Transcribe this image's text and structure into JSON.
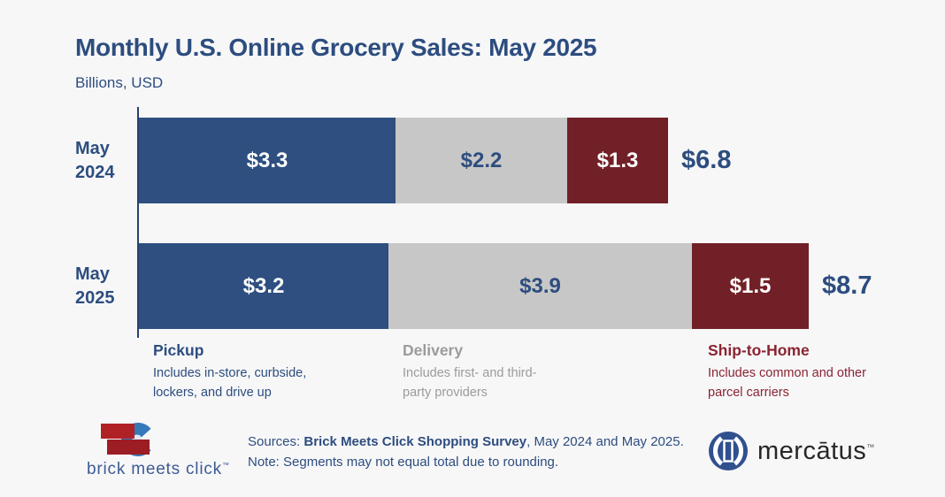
{
  "header": {
    "title": "Monthly U.S. Online Grocery Sales: May 2025",
    "subtitle": "Billions, USD"
  },
  "chart_data": {
    "type": "bar",
    "orientation": "horizontal",
    "stacked": true,
    "title": "Monthly U.S. Online Grocery Sales: May 2025",
    "unit_label": "Billions, USD",
    "categories": [
      "May 2024",
      "May 2025"
    ],
    "series": [
      {
        "name": "Pickup",
        "color": "#2e4f80",
        "label_color": "#ffffff",
        "values": [
          3.3,
          3.2
        ]
      },
      {
        "name": "Delivery",
        "color": "#c7c7c7",
        "label_color": "#2d4d7f",
        "values": [
          2.2,
          3.9
        ]
      },
      {
        "name": "Ship-to-Home",
        "color": "#722027",
        "label_color": "#ffffff",
        "values": [
          1.3,
          1.5
        ]
      }
    ],
    "segment_labels": [
      [
        "$3.3",
        "$2.2",
        "$1.3"
      ],
      [
        "$3.2",
        "$3.9",
        "$1.5"
      ]
    ],
    "totals": [
      6.8,
      8.7
    ],
    "total_labels": [
      "$6.8",
      "$8.7"
    ],
    "xlim": [
      0,
      8.7
    ],
    "axis_color": "#27436e",
    "value_text_color": "#2d4d7f",
    "legend_position": "below"
  },
  "legend": [
    {
      "title": "Pickup",
      "desc": "Includes in-store, curbside, lockers, and drive up",
      "color": "#2d4d7f"
    },
    {
      "title": "Delivery",
      "desc": "Includes first- and third-party providers",
      "color": "#9b9b9b"
    },
    {
      "title": "Ship-to-Home",
      "desc": "Includes common and other parcel carriers",
      "color": "#8a2432"
    }
  ],
  "footer": {
    "sources_prefix": "Sources: ",
    "sources_bold": "Brick Meets Click Shopping Survey",
    "sources_suffix": ", May 2024 and May 2025.",
    "note": "Note: Segments may not equal total due to rounding.",
    "brick_logo_text": "brick meets click",
    "brick_logo_tm": "™",
    "mercatus_text": "mercātus",
    "mercatus_tm": "™"
  },
  "colors": {
    "background": "#f7f7f8",
    "title": "#2d4d7f"
  }
}
